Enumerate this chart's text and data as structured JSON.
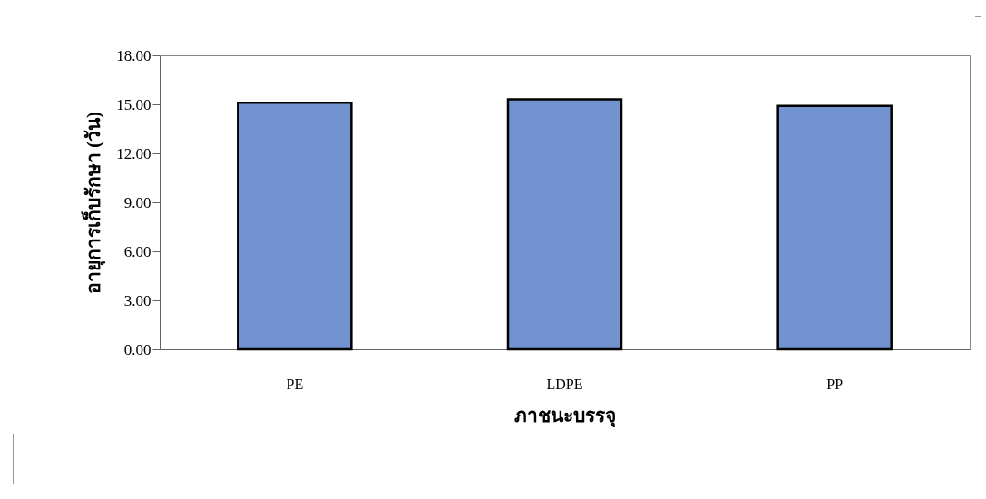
{
  "chart_data": {
    "type": "bar",
    "xlabel": "ภาชนะบรรจุ",
    "ylabel": "อายุการเก็บรักษา (วัน)",
    "categories": [
      "PE",
      "LDPE",
      "PP"
    ],
    "values": [
      15.1,
      15.3,
      14.9
    ],
    "color": "#7392d0",
    "ylim": [
      0,
      18
    ],
    "yticks": [
      {
        "value": 0,
        "label": "0.00"
      },
      {
        "value": 3,
        "label": "3.00"
      },
      {
        "value": 6,
        "label": "6.00"
      },
      {
        "value": 9,
        "label": "9.00"
      },
      {
        "value": 12,
        "label": "12.00"
      },
      {
        "value": 15,
        "label": "15.00"
      },
      {
        "value": 18,
        "label": "18.00"
      }
    ],
    "grid": false
  }
}
